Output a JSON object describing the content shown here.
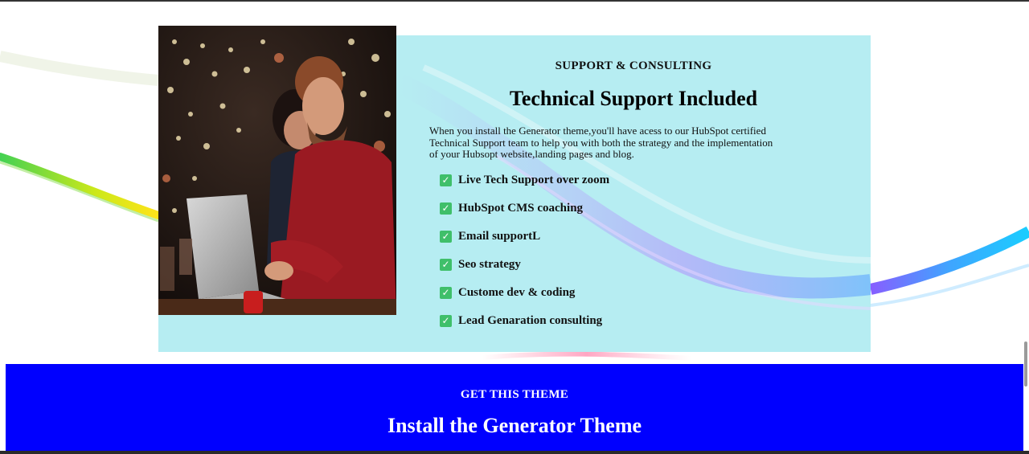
{
  "support": {
    "eyebrow": "SUPPORT & CONSULTING",
    "heading": "Technical Support Included",
    "description": "When you install the Generator theme,you'll have acess to our HubSpot certified Technical Support team to help you with both the strategy and the implementation of  your Hubsopt website,landing pages and blog.",
    "photo_icon": "couple-laptop-photo",
    "check_icon": "check-box-icon",
    "features": [
      "Live Tech Support over zoom",
      "HubSpot CMS coaching",
      "Email supportL",
      "Seo strategy",
      "Custome dev & coding",
      "Lead Genaration consulting"
    ]
  },
  "cta": {
    "eyebrow": "GET THIS THEME",
    "heading": "Install the Generator Theme",
    "background": "#0000ff"
  },
  "colors": {
    "panel": "#b0ecf1",
    "check": "#3fbf6a"
  }
}
